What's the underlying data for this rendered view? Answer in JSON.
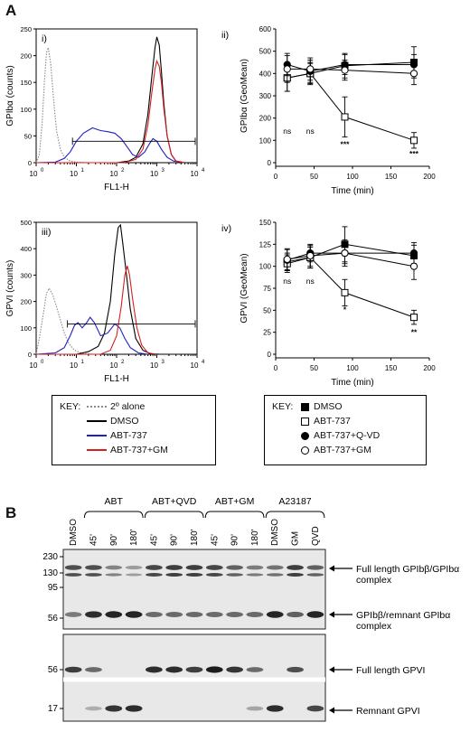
{
  "figure": {
    "panel_a": "A",
    "panel_b": "B"
  },
  "chart_data": [
    {
      "type": "histogram-overlay",
      "panel": "i)",
      "ylabel": "GPIbα (counts)",
      "xlabel": "FL1-H",
      "xscale": "log",
      "xlim": [
        1,
        10000
      ],
      "ylim": [
        0,
        250
      ],
      "yticks": [
        "0",
        "50",
        "100",
        "150",
        "200",
        "250"
      ],
      "xtick_bases": [
        "10",
        "10",
        "10",
        "10",
        "10"
      ],
      "xtick_exps": [
        "0",
        "1",
        "2",
        "3",
        "4"
      ],
      "gate": {
        "from": 8,
        "to": 10000,
        "level": 40
      },
      "series": [
        {
          "name": "2º alone",
          "color": "#888888",
          "dashed": true,
          "points": [
            [
              1,
              0
            ],
            [
              1.2,
              15
            ],
            [
              1.4,
              70
            ],
            [
              1.6,
              150
            ],
            [
              1.8,
              205
            ],
            [
              2.0,
              215
            ],
            [
              2.3,
              185
            ],
            [
              2.7,
              120
            ],
            [
              3.2,
              60
            ],
            [
              4,
              25
            ],
            [
              5,
              10
            ],
            [
              7,
              3
            ],
            [
              10,
              1
            ],
            [
              20,
              0
            ]
          ]
        },
        {
          "name": "DMSO",
          "color": "#000000",
          "points": [
            [
              1,
              0
            ],
            [
              100,
              0
            ],
            [
              200,
              3
            ],
            [
              300,
              10
            ],
            [
              450,
              35
            ],
            [
              600,
              90
            ],
            [
              750,
              160
            ],
            [
              900,
              215
            ],
            [
              1000,
              235
            ],
            [
              1150,
              220
            ],
            [
              1300,
              170
            ],
            [
              1500,
              110
            ],
            [
              1800,
              50
            ],
            [
              2300,
              15
            ],
            [
              3000,
              3
            ],
            [
              5000,
              0
            ]
          ]
        },
        {
          "name": "ABT-737",
          "color": "#2020c0",
          "points": [
            [
              1,
              0
            ],
            [
              3,
              1
            ],
            [
              5,
              8
            ],
            [
              7,
              20
            ],
            [
              10,
              40
            ],
            [
              15,
              55
            ],
            [
              25,
              65
            ],
            [
              40,
              60
            ],
            [
              60,
              58
            ],
            [
              90,
              55
            ],
            [
              130,
              45
            ],
            [
              180,
              30
            ],
            [
              250,
              15
            ],
            [
              350,
              10
            ],
            [
              500,
              20
            ],
            [
              650,
              35
            ],
            [
              800,
              45
            ],
            [
              1000,
              40
            ],
            [
              1300,
              25
            ],
            [
              1800,
              10
            ],
            [
              2600,
              3
            ],
            [
              5000,
              0
            ]
          ]
        },
        {
          "name": "ABT-737+GM",
          "color": "#d42020",
          "points": [
            [
              1,
              0
            ],
            [
              150,
              0
            ],
            [
              300,
              6
            ],
            [
              450,
              25
            ],
            [
              600,
              70
            ],
            [
              750,
              130
            ],
            [
              900,
              175
            ],
            [
              1000,
              190
            ],
            [
              1150,
              180
            ],
            [
              1300,
              150
            ],
            [
              1500,
              100
            ],
            [
              1800,
              50
            ],
            [
              2300,
              15
            ],
            [
              3000,
              3
            ],
            [
              5000,
              0
            ]
          ]
        }
      ]
    },
    {
      "type": "line",
      "panel": "ii)",
      "ylabel": "GPIbα (GeoMean)",
      "xlabel": "Time (min)",
      "xlim": [
        0,
        200
      ],
      "ylim": [
        0,
        600
      ],
      "xticks": [
        "0",
        "50",
        "100",
        "150",
        "200"
      ],
      "yticks": [
        "0",
        "100",
        "200",
        "300",
        "400",
        "500",
        "600"
      ],
      "x": [
        15,
        45,
        90,
        180
      ],
      "annotations": [
        {
          "x": 15,
          "y": 130,
          "text": "ns"
        },
        {
          "x": 45,
          "y": 130,
          "text": "ns"
        },
        {
          "x": 90,
          "y": 70,
          "text": "***"
        },
        {
          "x": 180,
          "y": 28,
          "text": "***"
        }
      ],
      "series": [
        {
          "name": "DMSO",
          "marker": "filled-square",
          "values": [
            380,
            400,
            435,
            450
          ],
          "errors": [
            60,
            45,
            55,
            70
          ]
        },
        {
          "name": "ABT-737",
          "marker": "open-square",
          "values": [
            380,
            400,
            205,
            100
          ],
          "errors": [
            60,
            50,
            90,
            35
          ]
        },
        {
          "name": "ABT-737+Q-VD",
          "marker": "filled-circle",
          "values": [
            440,
            410,
            440,
            440
          ],
          "errors": [
            50,
            50,
            45,
            45
          ]
        },
        {
          "name": "ABT-737+GM",
          "marker": "open-circle",
          "values": [
            420,
            420,
            415,
            400
          ],
          "errors": [
            60,
            50,
            45,
            50
          ]
        }
      ]
    },
    {
      "type": "histogram-overlay",
      "panel": "iii)",
      "ylabel": "GPVI (counts)",
      "xlabel": "FL1-H",
      "xscale": "log",
      "xlim": [
        1,
        10000
      ],
      "ylim": [
        0,
        500
      ],
      "yticks": [
        "0",
        "100",
        "200",
        "300",
        "400",
        "500"
      ],
      "xtick_bases": [
        "10",
        "10",
        "10",
        "10",
        "10"
      ],
      "xtick_exps": [
        "0",
        "1",
        "2",
        "3",
        "4"
      ],
      "gate": {
        "from": 6,
        "to": 10000,
        "level": 115
      },
      "series": [
        {
          "name": "2º alone",
          "color": "#888888",
          "dashed": true,
          "points": [
            [
              1,
              0
            ],
            [
              1.2,
              60
            ],
            [
              1.5,
              150
            ],
            [
              1.8,
              230
            ],
            [
              2.1,
              250
            ],
            [
              2.6,
              225
            ],
            [
              3.2,
              180
            ],
            [
              4,
              130
            ],
            [
              5,
              80
            ],
            [
              6.5,
              40
            ],
            [
              9,
              15
            ],
            [
              14,
              3
            ],
            [
              25,
              0
            ]
          ]
        },
        {
          "name": "DMSO",
          "color": "#000000",
          "points": [
            [
              1,
              0
            ],
            [
              10,
              0
            ],
            [
              20,
              10
            ],
            [
              35,
              30
            ],
            [
              50,
              80
            ],
            [
              70,
              200
            ],
            [
              90,
              380
            ],
            [
              110,
              480
            ],
            [
              125,
              490
            ],
            [
              140,
              430
            ],
            [
              170,
              320
            ],
            [
              220,
              170
            ],
            [
              300,
              60
            ],
            [
              450,
              15
            ],
            [
              700,
              2
            ],
            [
              1200,
              0
            ]
          ]
        },
        {
          "name": "ABT-737",
          "color": "#2020c0",
          "points": [
            [
              1,
              0
            ],
            [
              3,
              5
            ],
            [
              5,
              25
            ],
            [
              7,
              70
            ],
            [
              9,
              110
            ],
            [
              11,
              120
            ],
            [
              14,
              100
            ],
            [
              18,
              120
            ],
            [
              22,
              140
            ],
            [
              28,
              120
            ],
            [
              40,
              70
            ],
            [
              60,
              80
            ],
            [
              90,
              115
            ],
            [
              120,
              100
            ],
            [
              160,
              60
            ],
            [
              220,
              25
            ],
            [
              350,
              5
            ],
            [
              600,
              0
            ]
          ]
        },
        {
          "name": "ABT-737+GM",
          "color": "#d42020",
          "points": [
            [
              1,
              0
            ],
            [
              40,
              0
            ],
            [
              70,
              15
            ],
            [
              100,
              70
            ],
            [
              130,
              180
            ],
            [
              160,
              300
            ],
            [
              185,
              335
            ],
            [
              210,
              300
            ],
            [
              250,
              210
            ],
            [
              320,
              100
            ],
            [
              420,
              35
            ],
            [
              600,
              5
            ],
            [
              1000,
              0
            ]
          ]
        }
      ]
    },
    {
      "type": "line",
      "panel": "iv)",
      "ylabel": "GPVI (GeoMean)",
      "xlabel": "Time (min)",
      "xlim": [
        0,
        200
      ],
      "ylim": [
        0,
        150
      ],
      "xticks": [
        "0",
        "50",
        "100",
        "150",
        "200"
      ],
      "yticks": [
        "0",
        "25",
        "50",
        "75",
        "100",
        "125",
        "150"
      ],
      "x": [
        15,
        45,
        90,
        180
      ],
      "annotations": [
        {
          "x": 15,
          "y": 80,
          "text": "ns"
        },
        {
          "x": 45,
          "y": 80,
          "text": "ns"
        },
        {
          "x": 90,
          "y": 48,
          "text": "*"
        },
        {
          "x": 180,
          "y": 22,
          "text": "**"
        }
      ],
      "series": [
        {
          "name": "DMSO",
          "marker": "filled-square",
          "values": [
            105,
            110,
            125,
            112
          ],
          "errors": [
            10,
            12,
            20,
            12
          ]
        },
        {
          "name": "ABT-737",
          "marker": "open-square",
          "values": [
            103,
            110,
            70,
            42
          ],
          "errors": [
            10,
            12,
            15,
            8
          ]
        },
        {
          "name": "ABT-737+Q-VD",
          "marker": "filled-circle",
          "values": [
            107,
            115,
            115,
            115
          ],
          "errors": [
            12,
            10,
            12,
            12
          ]
        },
        {
          "name": "ABT-737+GM",
          "marker": "open-circle",
          "values": [
            108,
            112,
            115,
            100
          ],
          "errors": [
            12,
            12,
            15,
            15
          ]
        }
      ]
    }
  ],
  "key_left": {
    "title": "KEY:",
    "items": [
      {
        "label": "2º alone",
        "color": "#888888"
      },
      {
        "label": "DMSO",
        "color": "#000000"
      },
      {
        "label": "ABT-737",
        "color": "#2020c0"
      },
      {
        "label": "ABT-737+GM",
        "color": "#d42020"
      }
    ]
  },
  "key_right": {
    "title": "KEY:",
    "items": [
      {
        "label": "DMSO",
        "marker": "filled-square"
      },
      {
        "label": "ABT-737",
        "marker": "open-square"
      },
      {
        "label": "ABT-737+Q-VD",
        "marker": "filled-circle"
      },
      {
        "label": "ABT-737+GM",
        "marker": "open-circle"
      }
    ]
  },
  "blot": {
    "groups": [
      "ABT",
      "ABT+QVD",
      "ABT+GM",
      "A23187"
    ],
    "lanes": [
      "DMSO",
      "45'",
      "90'",
      "180'",
      "45'",
      "90'",
      "180'",
      "45'",
      "90'",
      "180'",
      "DMSO",
      "GM",
      "QVD"
    ],
    "mw_top": [
      "230",
      "130",
      "95",
      "56"
    ],
    "mw_bottom_1": "56",
    "mw_bottom_2": "17",
    "bands_full_gpib": [
      0.7,
      0.7,
      0.4,
      0.25,
      0.75,
      0.8,
      0.8,
      0.75,
      0.6,
      0.45,
      0.5,
      0.8,
      0.6
    ],
    "bands_remnant_gpib": [
      0.45,
      0.9,
      0.95,
      0.95,
      0.55,
      0.55,
      0.55,
      0.55,
      0.55,
      0.55,
      0.95,
      0.6,
      0.95
    ],
    "bands_full_gpvi": [
      0.8,
      0.55,
      0.0,
      0.0,
      0.9,
      0.9,
      0.8,
      1.0,
      0.85,
      0.55,
      0.0,
      0.7,
      0.0
    ],
    "bands_remnant_gpvi": [
      0.0,
      0.15,
      0.85,
      0.9,
      0.0,
      0.0,
      0.0,
      0.0,
      0.0,
      0.2,
      0.9,
      0.0,
      0.75
    ],
    "labels": [
      "Full length GPIbβ/GPIbα",
      "complex",
      "GPIbβ/remnant GPIbα",
      "complex",
      "Full length GPVI",
      "Remnant GPVI"
    ]
  }
}
